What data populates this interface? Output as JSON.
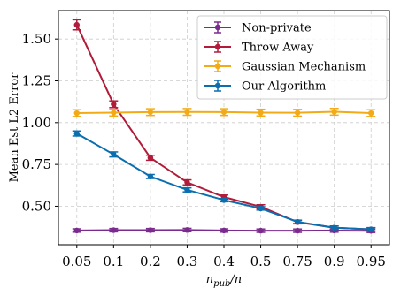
{
  "chart_data": {
    "type": "line",
    "x": [
      "0.05",
      "0.1",
      "0.2",
      "0.3",
      "0.4",
      "0.5",
      "0.75",
      "0.9",
      "0.95"
    ],
    "xlabel": "n_pub/n",
    "ylabel": "Mean Est L2 Error",
    "ylim": [
      0.27,
      1.67
    ],
    "yticks": [
      "0.50",
      "0.75",
      "1.00",
      "1.25",
      "1.50"
    ],
    "grid": true,
    "legend_position": "top-right",
    "series": [
      {
        "name": "Non-private",
        "color": "#7b2a8e",
        "values": [
          0.355,
          0.357,
          0.357,
          0.358,
          0.355,
          0.354,
          0.354,
          0.355,
          0.353
        ],
        "errors": [
          0.01,
          0.01,
          0.01,
          0.01,
          0.01,
          0.01,
          0.01,
          0.01,
          0.01
        ]
      },
      {
        "name": "Throw Away",
        "color": "#b01c3a",
        "values": [
          1.585,
          1.11,
          0.79,
          0.643,
          0.555,
          0.497,
          0.405,
          0.372,
          0.362
        ],
        "errors": [
          0.03,
          0.02,
          0.015,
          0.015,
          0.012,
          0.012,
          0.01,
          0.01,
          0.01
        ]
      },
      {
        "name": "Gaussian Mechanism",
        "color": "#f2ab17",
        "values": [
          1.057,
          1.06,
          1.063,
          1.064,
          1.063,
          1.06,
          1.059,
          1.065,
          1.057
        ],
        "errors": [
          0.02,
          0.02,
          0.02,
          0.02,
          0.02,
          0.02,
          0.02,
          0.02,
          0.02
        ]
      },
      {
        "name": "Our Algorithm",
        "color": "#0a6eaf",
        "values": [
          0.935,
          0.81,
          0.678,
          0.598,
          0.537,
          0.487,
          0.407,
          0.372,
          0.362
        ],
        "errors": [
          0.015,
          0.015,
          0.012,
          0.012,
          0.01,
          0.01,
          0.01,
          0.01,
          0.01
        ]
      }
    ]
  }
}
